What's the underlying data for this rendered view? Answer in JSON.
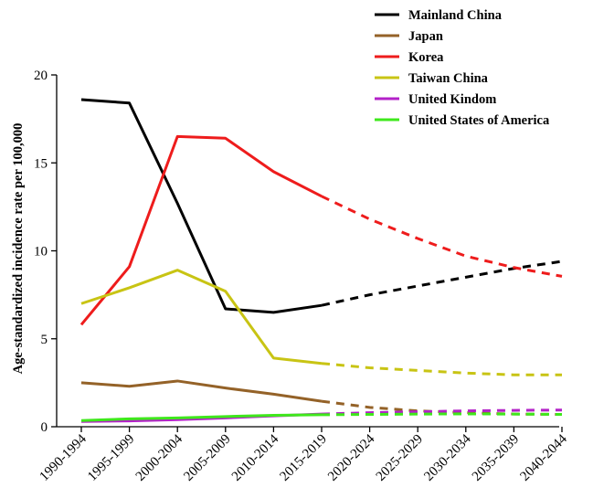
{
  "chart_data": {
    "type": "line",
    "ylabel": "Age-standardized incidence rate per 100,000",
    "xlabel": "",
    "ylim": [
      0,
      20
    ],
    "yticks": [
      0,
      5,
      10,
      15,
      20
    ],
    "categories": [
      "1990-1994",
      "1995-1999",
      "2000-2004",
      "2005-2009",
      "2010-2014",
      "2015-2019",
      "2020-2024",
      "2025-2029",
      "2030-2034",
      "2035-2039",
      "2040-2044"
    ],
    "observed_last_index": 5,
    "projected_style": "dashed",
    "legend_position": "top-right",
    "grid": false,
    "series": [
      {
        "name": "Mainland China",
        "color": "#000000",
        "values": [
          18.6,
          18.4,
          12.7,
          6.7,
          6.5,
          6.9,
          7.5,
          8.0,
          8.5,
          9.0,
          9.4
        ]
      },
      {
        "name": "Japan",
        "color": "#946228",
        "values": [
          2.5,
          2.3,
          2.6,
          2.2,
          1.85,
          1.45,
          1.1,
          0.9,
          0.8,
          0.72,
          0.7
        ]
      },
      {
        "name": "Korea",
        "color": "#ee1c1c",
        "values": [
          5.8,
          9.1,
          16.5,
          16.4,
          14.5,
          13.1,
          11.8,
          10.7,
          9.7,
          9.05,
          8.55
        ]
      },
      {
        "name": "Taiwan China",
        "color": "#c8c414",
        "values": [
          7.0,
          7.9,
          8.9,
          7.7,
          3.9,
          3.6,
          3.35,
          3.2,
          3.05,
          2.95,
          2.95
        ]
      },
      {
        "name": "United Kindom",
        "color": "#b321c8",
        "values": [
          0.3,
          0.33,
          0.4,
          0.5,
          0.62,
          0.72,
          0.8,
          0.85,
          0.9,
          0.93,
          0.95
        ]
      },
      {
        "name": "United States of America",
        "color": "#3fe81c",
        "values": [
          0.35,
          0.45,
          0.5,
          0.58,
          0.65,
          0.68,
          0.7,
          0.72,
          0.73,
          0.72,
          0.7
        ]
      }
    ]
  }
}
